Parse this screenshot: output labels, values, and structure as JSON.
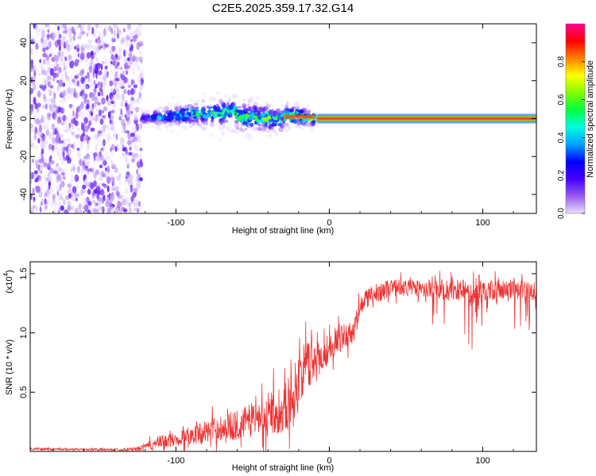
{
  "title": "C2E5.2025.359.17.32.G14",
  "chart_data": [
    {
      "type": "heatmap",
      "title": "C2E5.2025.359.17.32.G14",
      "xlabel": "Height of straight line (km)",
      "ylabel": "Frequency (Hz)",
      "xlim": [
        -195,
        135
      ],
      "ylim": [
        -50,
        50
      ],
      "xticks": [
        -100,
        0,
        100
      ],
      "xtick_labels": [
        "-100",
        "0",
        "100"
      ],
      "yticks": [
        -40,
        -20,
        0,
        20,
        40
      ],
      "ytick_labels": [
        "-40",
        "-20",
        "0",
        "20",
        "40"
      ],
      "colorbar": {
        "label": "Normalized spectral amplitude",
        "range": [
          0,
          1
        ],
        "ticks": [
          0.0,
          0.2,
          0.4,
          0.6,
          0.8
        ],
        "tick_labels": [
          "0.0",
          "0.2",
          "0.4",
          "0.6",
          "0.8"
        ],
        "colors": [
          "#e8e0ff",
          "#9a5af0",
          "#4400ff",
          "#0000ff",
          "#00a0ff",
          "#00ffe0",
          "#00ff40",
          "#80ff00",
          "#ffff00",
          "#ff8000",
          "#ff0000",
          "#ff0090"
        ]
      },
      "features": [
        {
          "name": "broadband noise",
          "x_range": [
            -195,
            -122
          ],
          "freq_range": [
            -50,
            50
          ],
          "amplitude": 0.1
        },
        {
          "name": "emerging band",
          "x_range": [
            -122,
            -10
          ],
          "center_hz": 0,
          "amplitude": 0.45
        },
        {
          "name": "steady carrier",
          "x_range": [
            0,
            135
          ],
          "center_hz": 0,
          "amplitude": 0.95
        }
      ]
    },
    {
      "type": "line",
      "xlabel": "Height of straight line (km)",
      "ylabel": "SNR (10 * v/v)",
      "multiplier_label": "(x10",
      "multiplier_exp": "4",
      "xlim": [
        -195,
        135
      ],
      "ylim": [
        0,
        1.6
      ],
      "xticks": [
        -100,
        0,
        100
      ],
      "xtick_labels": [
        "-100",
        "0",
        "100"
      ],
      "yticks": [
        0.5,
        1.0,
        1.5
      ],
      "ytick_labels": [
        "0.5",
        "1.0",
        "1.5"
      ],
      "series": [
        {
          "name": "SNR",
          "color": "#ee3333",
          "x": [
            -195,
            -180,
            -160,
            -140,
            -125,
            -120,
            -110,
            -100,
            -90,
            -80,
            -70,
            -60,
            -50,
            -40,
            -35,
            -30,
            -25,
            -20,
            -15,
            -10,
            -5,
            0,
            5,
            10,
            15,
            20,
            25,
            30,
            35,
            40,
            50,
            60,
            70,
            80,
            90,
            95,
            100,
            110,
            120,
            130,
            135
          ],
          "mean": [
            0.02,
            0.02,
            0.018,
            0.015,
            0.02,
            0.04,
            0.08,
            0.1,
            0.14,
            0.17,
            0.2,
            0.22,
            0.27,
            0.32,
            0.34,
            0.37,
            0.42,
            0.62,
            0.72,
            0.76,
            0.8,
            0.88,
            0.94,
            0.98,
            1.0,
            1.2,
            1.3,
            1.33,
            1.36,
            1.38,
            1.38,
            1.38,
            1.37,
            1.36,
            1.37,
            1.22,
            1.36,
            1.36,
            1.37,
            1.35,
            1.36
          ],
          "amplitude": [
            0.012,
            0.012,
            0.012,
            0.012,
            0.02,
            0.04,
            0.07,
            0.07,
            0.1,
            0.12,
            0.14,
            0.16,
            0.18,
            0.22,
            0.24,
            0.26,
            0.3,
            0.28,
            0.26,
            0.24,
            0.2,
            0.15,
            0.14,
            0.13,
            0.12,
            0.12,
            0.11,
            0.1,
            0.1,
            0.09,
            0.09,
            0.09,
            0.1,
            0.12,
            0.1,
            0.22,
            0.1,
            0.1,
            0.1,
            0.1,
            0.1
          ]
        }
      ]
    }
  ]
}
